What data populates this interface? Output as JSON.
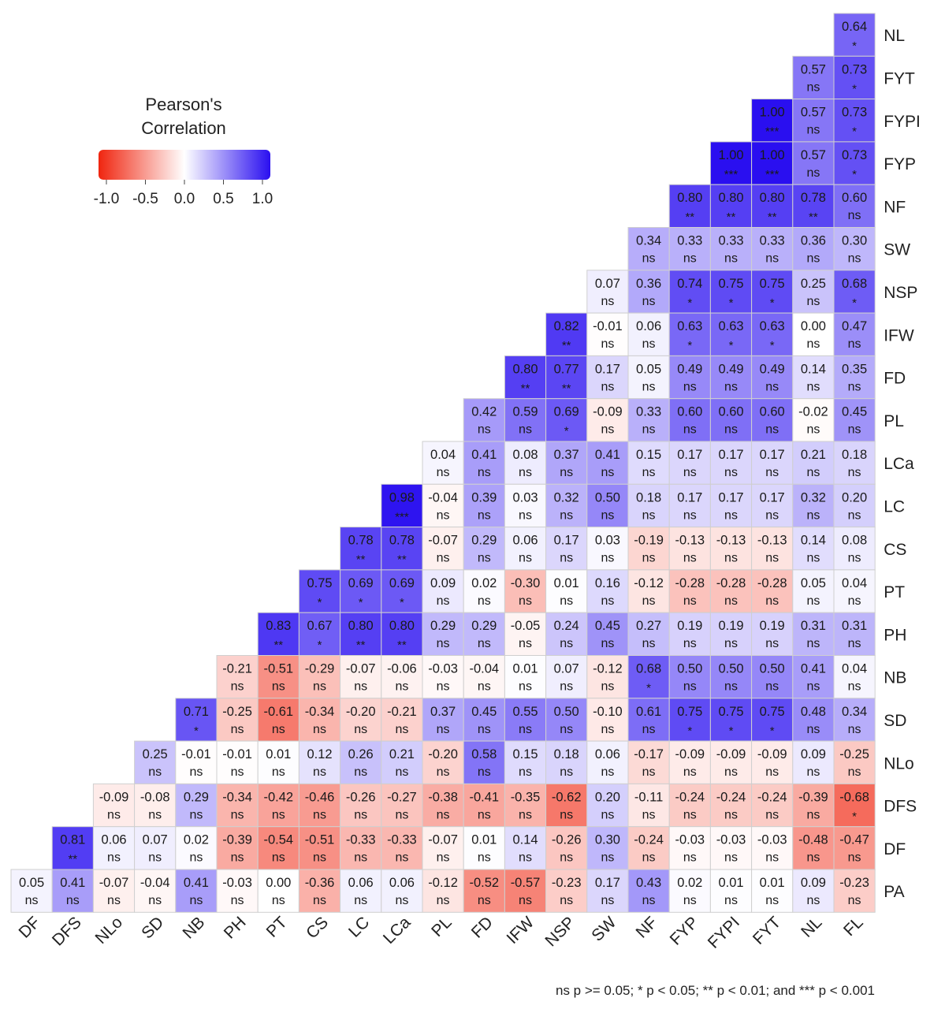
{
  "chart_data": {
    "type": "heatmap",
    "title": "",
    "xlabel": "",
    "ylabel": "",
    "columns": [
      "DF",
      "DFS",
      "NLo",
      "SD",
      "NB",
      "PH",
      "PT",
      "CS",
      "LC",
      "LCa",
      "PL",
      "FD",
      "IFW",
      "NSP",
      "SW",
      "NF",
      "FYP",
      "FYPI",
      "FYT",
      "NL",
      "FL"
    ],
    "rows": [
      "NL",
      "FYT",
      "FYPI",
      "FYP",
      "NF",
      "SW",
      "NSP",
      "IFW",
      "FD",
      "PL",
      "LCa",
      "LC",
      "CS",
      "PT",
      "PH",
      "NB",
      "SD",
      "NLo",
      "DFS",
      "DF",
      "PA"
    ],
    "values": [
      [
        null,
        null,
        null,
        null,
        null,
        null,
        null,
        null,
        null,
        null,
        null,
        null,
        null,
        null,
        null,
        null,
        null,
        null,
        null,
        null,
        0.64
      ],
      [
        null,
        null,
        null,
        null,
        null,
        null,
        null,
        null,
        null,
        null,
        null,
        null,
        null,
        null,
        null,
        null,
        null,
        null,
        null,
        0.57,
        0.73
      ],
      [
        null,
        null,
        null,
        null,
        null,
        null,
        null,
        null,
        null,
        null,
        null,
        null,
        null,
        null,
        null,
        null,
        null,
        null,
        1.0,
        0.57,
        0.73
      ],
      [
        null,
        null,
        null,
        null,
        null,
        null,
        null,
        null,
        null,
        null,
        null,
        null,
        null,
        null,
        null,
        null,
        null,
        1.0,
        1.0,
        0.57,
        0.73
      ],
      [
        null,
        null,
        null,
        null,
        null,
        null,
        null,
        null,
        null,
        null,
        null,
        null,
        null,
        null,
        null,
        null,
        0.8,
        0.8,
        0.8,
        0.78,
        0.6
      ],
      [
        null,
        null,
        null,
        null,
        null,
        null,
        null,
        null,
        null,
        null,
        null,
        null,
        null,
        null,
        null,
        0.34,
        0.33,
        0.33,
        0.33,
        0.36,
        0.3
      ],
      [
        null,
        null,
        null,
        null,
        null,
        null,
        null,
        null,
        null,
        null,
        null,
        null,
        null,
        null,
        0.07,
        0.36,
        0.74,
        0.75,
        0.75,
        0.25,
        0.68
      ],
      [
        null,
        null,
        null,
        null,
        null,
        null,
        null,
        null,
        null,
        null,
        null,
        null,
        null,
        0.82,
        -0.01,
        0.06,
        0.63,
        0.63,
        0.63,
        0.0,
        0.47
      ],
      [
        null,
        null,
        null,
        null,
        null,
        null,
        null,
        null,
        null,
        null,
        null,
        null,
        0.8,
        0.77,
        0.17,
        0.05,
        0.49,
        0.49,
        0.49,
        0.14,
        0.35
      ],
      [
        null,
        null,
        null,
        null,
        null,
        null,
        null,
        null,
        null,
        null,
        null,
        0.42,
        0.59,
        0.69,
        -0.09,
        0.33,
        0.6,
        0.6,
        0.6,
        -0.02,
        0.45
      ],
      [
        null,
        null,
        null,
        null,
        null,
        null,
        null,
        null,
        null,
        null,
        0.04,
        0.41,
        0.08,
        0.37,
        0.41,
        0.15,
        0.17,
        0.17,
        0.17,
        0.21,
        0.18
      ],
      [
        null,
        null,
        null,
        null,
        null,
        null,
        null,
        null,
        null,
        0.98,
        -0.04,
        0.39,
        0.03,
        0.32,
        0.5,
        0.18,
        0.17,
        0.17,
        0.17,
        0.32,
        0.2
      ],
      [
        null,
        null,
        null,
        null,
        null,
        null,
        null,
        null,
        0.78,
        0.78,
        -0.07,
        0.29,
        0.06,
        0.17,
        0.03,
        -0.19,
        -0.13,
        -0.13,
        -0.13,
        0.14,
        0.08
      ],
      [
        null,
        null,
        null,
        null,
        null,
        null,
        null,
        0.75,
        0.69,
        0.69,
        0.09,
        0.02,
        -0.3,
        0.01,
        0.16,
        -0.12,
        -0.28,
        -0.28,
        -0.28,
        0.05,
        0.04
      ],
      [
        null,
        null,
        null,
        null,
        null,
        null,
        0.83,
        0.67,
        0.8,
        0.8,
        0.29,
        0.29,
        -0.05,
        0.24,
        0.45,
        0.27,
        0.19,
        0.19,
        0.19,
        0.31,
        0.31
      ],
      [
        null,
        null,
        null,
        null,
        null,
        -0.21,
        -0.51,
        -0.29,
        -0.07,
        -0.06,
        -0.03,
        -0.04,
        0.01,
        0.07,
        -0.12,
        0.68,
        0.5,
        0.5,
        0.5,
        0.41,
        0.04
      ],
      [
        null,
        null,
        null,
        null,
        0.71,
        -0.25,
        -0.61,
        -0.34,
        -0.2,
        -0.21,
        0.37,
        0.45,
        0.55,
        0.5,
        -0.1,
        0.61,
        0.75,
        0.75,
        0.75,
        0.48,
        0.34
      ],
      [
        null,
        null,
        null,
        0.25,
        -0.01,
        -0.01,
        0.01,
        0.12,
        0.26,
        0.21,
        -0.2,
        0.58,
        0.15,
        0.18,
        0.06,
        -0.17,
        -0.09,
        -0.09,
        -0.09,
        0.09,
        -0.25
      ],
      [
        null,
        null,
        -0.09,
        -0.08,
        0.29,
        -0.34,
        -0.42,
        -0.46,
        -0.26,
        -0.27,
        -0.38,
        -0.41,
        -0.35,
        -0.62,
        0.2,
        -0.11,
        -0.24,
        -0.24,
        -0.24,
        -0.39,
        -0.68
      ],
      [
        null,
        0.81,
        0.06,
        0.07,
        0.02,
        -0.39,
        -0.54,
        -0.51,
        -0.33,
        -0.33,
        -0.07,
        0.01,
        0.14,
        -0.26,
        0.3,
        -0.24,
        -0.03,
        -0.03,
        -0.03,
        -0.48,
        -0.47
      ],
      [
        0.05,
        0.41,
        -0.07,
        -0.04,
        0.41,
        -0.03,
        0.0,
        -0.36,
        0.06,
        0.06,
        -0.12,
        -0.52,
        -0.57,
        -0.23,
        0.17,
        0.43,
        0.02,
        0.01,
        0.01,
        0.09,
        -0.23
      ]
    ],
    "sig": [
      [
        null,
        null,
        null,
        null,
        null,
        null,
        null,
        null,
        null,
        null,
        null,
        null,
        null,
        null,
        null,
        null,
        null,
        null,
        null,
        null,
        "*"
      ],
      [
        null,
        null,
        null,
        null,
        null,
        null,
        null,
        null,
        null,
        null,
        null,
        null,
        null,
        null,
        null,
        null,
        null,
        null,
        null,
        "ns",
        "*"
      ],
      [
        null,
        null,
        null,
        null,
        null,
        null,
        null,
        null,
        null,
        null,
        null,
        null,
        null,
        null,
        null,
        null,
        null,
        null,
        "***",
        "ns",
        "*"
      ],
      [
        null,
        null,
        null,
        null,
        null,
        null,
        null,
        null,
        null,
        null,
        null,
        null,
        null,
        null,
        null,
        null,
        null,
        "***",
        "***",
        "ns",
        "*"
      ],
      [
        null,
        null,
        null,
        null,
        null,
        null,
        null,
        null,
        null,
        null,
        null,
        null,
        null,
        null,
        null,
        null,
        "**",
        "**",
        "**",
        "**",
        "ns"
      ],
      [
        null,
        null,
        null,
        null,
        null,
        null,
        null,
        null,
        null,
        null,
        null,
        null,
        null,
        null,
        null,
        "ns",
        "ns",
        "ns",
        "ns",
        "ns",
        "ns"
      ],
      [
        null,
        null,
        null,
        null,
        null,
        null,
        null,
        null,
        null,
        null,
        null,
        null,
        null,
        null,
        "ns",
        "ns",
        "*",
        "*",
        "*",
        "ns",
        "*"
      ],
      [
        null,
        null,
        null,
        null,
        null,
        null,
        null,
        null,
        null,
        null,
        null,
        null,
        null,
        "**",
        "ns",
        "ns",
        "*",
        "*",
        "*",
        "ns",
        "ns"
      ],
      [
        null,
        null,
        null,
        null,
        null,
        null,
        null,
        null,
        null,
        null,
        null,
        null,
        "**",
        "**",
        "ns",
        "ns",
        "ns",
        "ns",
        "ns",
        "ns",
        "ns"
      ],
      [
        null,
        null,
        null,
        null,
        null,
        null,
        null,
        null,
        null,
        null,
        null,
        "ns",
        "ns",
        "*",
        "ns",
        "ns",
        "ns",
        "ns",
        "ns",
        "ns",
        "ns"
      ],
      [
        null,
        null,
        null,
        null,
        null,
        null,
        null,
        null,
        null,
        null,
        "ns",
        "ns",
        "ns",
        "ns",
        "ns",
        "ns",
        "ns",
        "ns",
        "ns",
        "ns",
        "ns"
      ],
      [
        null,
        null,
        null,
        null,
        null,
        null,
        null,
        null,
        null,
        "***",
        "ns",
        "ns",
        "ns",
        "ns",
        "ns",
        "ns",
        "ns",
        "ns",
        "ns",
        "ns",
        "ns"
      ],
      [
        null,
        null,
        null,
        null,
        null,
        null,
        null,
        null,
        "**",
        "**",
        "ns",
        "ns",
        "ns",
        "ns",
        "ns",
        "ns",
        "ns",
        "ns",
        "ns",
        "ns",
        "ns"
      ],
      [
        null,
        null,
        null,
        null,
        null,
        null,
        null,
        "*",
        "*",
        "*",
        "ns",
        "ns",
        "ns",
        "ns",
        "ns",
        "ns",
        "ns",
        "ns",
        "ns",
        "ns",
        "ns"
      ],
      [
        null,
        null,
        null,
        null,
        null,
        null,
        "**",
        "*",
        "**",
        "**",
        "ns",
        "ns",
        "ns",
        "ns",
        "ns",
        "ns",
        "ns",
        "ns",
        "ns",
        "ns",
        "ns"
      ],
      [
        null,
        null,
        null,
        null,
        null,
        "ns",
        "ns",
        "ns",
        "ns",
        "ns",
        "ns",
        "ns",
        "ns",
        "ns",
        "ns",
        "*",
        "ns",
        "ns",
        "ns",
        "ns",
        "ns"
      ],
      [
        null,
        null,
        null,
        null,
        "*",
        "ns",
        "ns",
        "ns",
        "ns",
        "ns",
        "ns",
        "ns",
        "ns",
        "ns",
        "ns",
        "ns",
        "*",
        "*",
        "*",
        "ns",
        "ns"
      ],
      [
        null,
        null,
        null,
        "ns",
        "ns",
        "ns",
        "ns",
        "ns",
        "ns",
        "ns",
        "ns",
        "ns",
        "ns",
        "ns",
        "ns",
        "ns",
        "ns",
        "ns",
        "ns",
        "ns",
        "ns"
      ],
      [
        null,
        null,
        "ns",
        "ns",
        "ns",
        "ns",
        "ns",
        "ns",
        "ns",
        "ns",
        "ns",
        "ns",
        "ns",
        "ns",
        "ns",
        "ns",
        "ns",
        "ns",
        "ns",
        "ns",
        "*"
      ],
      [
        null,
        "**",
        "ns",
        "ns",
        "ns",
        "ns",
        "ns",
        "ns",
        "ns",
        "ns",
        "ns",
        "ns",
        "ns",
        "ns",
        "ns",
        "ns",
        "ns",
        "ns",
        "ns",
        "ns",
        "ns"
      ],
      [
        "ns",
        "ns",
        "ns",
        "ns",
        "ns",
        "ns",
        "ns",
        "ns",
        "ns",
        "ns",
        "ns",
        "ns",
        "ns",
        "ns",
        "ns",
        "ns",
        "ns",
        "ns",
        "ns",
        "ns",
        "ns"
      ]
    ],
    "color_scale": {
      "low": "#f0250f",
      "mid": "#ffffff",
      "high": "#2a0ff0",
      "range": [
        -1,
        1
      ]
    },
    "legend": {
      "title_lines": [
        "Pearson's",
        "Correlation"
      ],
      "ticks": [
        "-1.0",
        "-0.5",
        "0.0",
        "0.5",
        "1.0"
      ],
      "placement": "top-left"
    },
    "footnote": "ns p >= 0.05; * p < 0.05; ** p < 0.01; and *** p < 0.001"
  }
}
